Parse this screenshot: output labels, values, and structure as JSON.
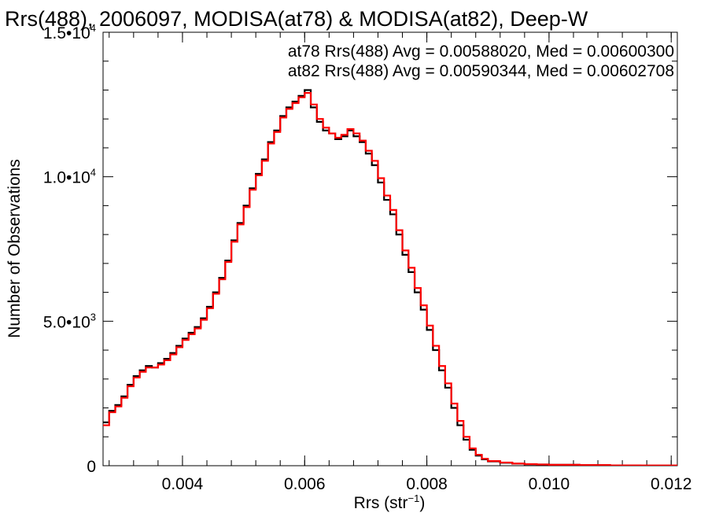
{
  "chart_data": {
    "type": "line",
    "title": "Rrs(488), 2006097, MODISA(at78) & MODISA(at82), Deep-W",
    "xlabel": {
      "base": "Rrs (str",
      "sup": "−1",
      "tail": ")"
    },
    "ylabel": "Number of Observations",
    "xlim": [
      0.0027,
      0.0121
    ],
    "ylim": [
      0,
      15000
    ],
    "grid": false,
    "x_ticks": [
      {
        "value": 0.004,
        "label": "0.004"
      },
      {
        "value": 0.006,
        "label": "0.006"
      },
      {
        "value": 0.008,
        "label": "0.008"
      },
      {
        "value": 0.01,
        "label": "0.010"
      },
      {
        "value": 0.012,
        "label": "0.012"
      }
    ],
    "y_ticks": [
      {
        "value": 0,
        "base": "0",
        "sup": ""
      },
      {
        "value": 5000,
        "base": "5.0•10",
        "sup": "3"
      },
      {
        "value": 10000,
        "base": "1.0•10",
        "sup": "4"
      },
      {
        "value": 15000,
        "base": "1.5•10",
        "sup": "4"
      }
    ],
    "annotations": [
      {
        "text": "at78 Rrs(488) Avg = 0.00588020, Med = 0.00600300",
        "color": "#000000"
      },
      {
        "text": "at82 Rrs(488) Avg = 0.00590344, Med = 0.00602708",
        "color": "#ff0000"
      }
    ],
    "series": [
      {
        "color": "#000000",
        "x": [
          0.0027,
          0.0028,
          0.0029,
          0.003,
          0.0031,
          0.0032,
          0.0033,
          0.0034,
          0.0035,
          0.0036,
          0.0037,
          0.0038,
          0.0039,
          0.004,
          0.0041,
          0.0042,
          0.0043,
          0.0044,
          0.0045,
          0.0046,
          0.0047,
          0.0048,
          0.0049,
          0.005,
          0.0051,
          0.0052,
          0.0053,
          0.0054,
          0.0055,
          0.0056,
          0.0057,
          0.0058,
          0.0059,
          0.006,
          0.0061,
          0.0062,
          0.0063,
          0.0064,
          0.0065,
          0.0066,
          0.0067,
          0.0068,
          0.0069,
          0.007,
          0.0071,
          0.0072,
          0.0073,
          0.0074,
          0.0075,
          0.0076,
          0.0077,
          0.0078,
          0.0079,
          0.008,
          0.0081,
          0.0082,
          0.0083,
          0.0084,
          0.0085,
          0.0086,
          0.0087,
          0.0088,
          0.0089,
          0.009,
          0.0092,
          0.0094,
          0.0096,
          0.0098,
          0.01,
          0.0105,
          0.011,
          0.0115,
          0.0121
        ],
        "y": [
          1500,
          1900,
          2100,
          2400,
          2800,
          3100,
          3300,
          3450,
          3400,
          3550,
          3700,
          3900,
          4150,
          4400,
          4600,
          4800,
          5100,
          5500,
          6000,
          6500,
          7100,
          7800,
          8400,
          9000,
          9600,
          10100,
          10600,
          11200,
          11600,
          12100,
          12400,
          12600,
          12800,
          13000,
          12400,
          11900,
          11600,
          11500,
          11300,
          11400,
          11600,
          11400,
          11200,
          10800,
          10400,
          9800,
          9200,
          8700,
          8000,
          7300,
          6700,
          6000,
          5400,
          4700,
          4000,
          3300,
          2700,
          2000,
          1400,
          900,
          550,
          350,
          220,
          150,
          100,
          70,
          50,
          40,
          30,
          20,
          10,
          5,
          0
        ]
      },
      {
        "color": "#ff0000",
        "x": [
          0.0027,
          0.0028,
          0.0029,
          0.003,
          0.0031,
          0.0032,
          0.0033,
          0.0034,
          0.0035,
          0.0036,
          0.0037,
          0.0038,
          0.0039,
          0.004,
          0.0041,
          0.0042,
          0.0043,
          0.0044,
          0.0045,
          0.0046,
          0.0047,
          0.0048,
          0.0049,
          0.005,
          0.0051,
          0.0052,
          0.0053,
          0.0054,
          0.0055,
          0.0056,
          0.0057,
          0.0058,
          0.0059,
          0.006,
          0.0061,
          0.0062,
          0.0063,
          0.0064,
          0.0065,
          0.0066,
          0.0067,
          0.0068,
          0.0069,
          0.007,
          0.0071,
          0.0072,
          0.0073,
          0.0074,
          0.0075,
          0.0076,
          0.0077,
          0.0078,
          0.0079,
          0.008,
          0.0081,
          0.0082,
          0.0083,
          0.0084,
          0.0085,
          0.0086,
          0.0087,
          0.0088,
          0.0089,
          0.009,
          0.0092,
          0.0094,
          0.0096,
          0.0098,
          0.01,
          0.0105,
          0.011,
          0.0115,
          0.0121
        ],
        "y": [
          1400,
          1850,
          2050,
          2350,
          2750,
          3050,
          3250,
          3400,
          3400,
          3500,
          3650,
          3850,
          4100,
          4350,
          4550,
          4750,
          5050,
          5450,
          5950,
          6450,
          7050,
          7750,
          8350,
          8950,
          9550,
          10050,
          10550,
          11150,
          11550,
          12050,
          12350,
          12550,
          12750,
          12900,
          12500,
          12000,
          11700,
          11500,
          11350,
          11450,
          11650,
          11500,
          11250,
          10900,
          10550,
          9950,
          9350,
          8850,
          8150,
          7450,
          6850,
          6150,
          5550,
          4850,
          4150,
          3450,
          2850,
          2150,
          1550,
          1000,
          600,
          380,
          240,
          160,
          110,
          75,
          55,
          42,
          32,
          22,
          12,
          6,
          0
        ]
      }
    ]
  }
}
